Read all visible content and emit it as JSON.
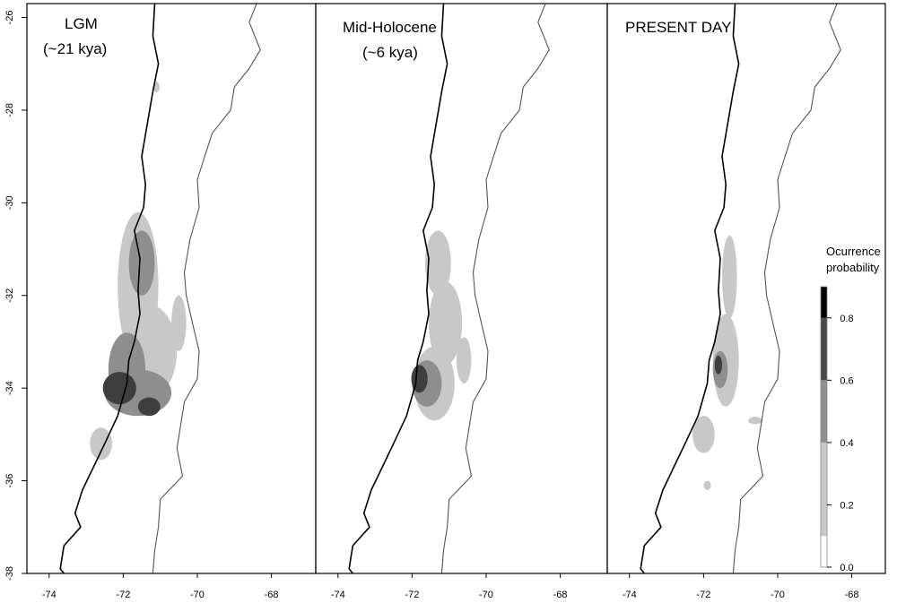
{
  "panels": [
    {
      "id": "lgm",
      "title_lines": [
        "LGM",
        "(~21 kya)"
      ],
      "blobs": [
        {
          "cx": -71.6,
          "cy": -31.8,
          "rx": 0.55,
          "ry": 1.6,
          "level": 0.2
        },
        {
          "cx": -71.5,
          "cy": -31.3,
          "rx": 0.35,
          "ry": 0.7,
          "level": 0.4
        },
        {
          "cx": -71.3,
          "cy": -33.2,
          "rx": 0.75,
          "ry": 1.0,
          "level": 0.2
        },
        {
          "cx": -71.9,
          "cy": -33.6,
          "rx": 0.5,
          "ry": 0.8,
          "level": 0.4
        },
        {
          "cx": -71.6,
          "cy": -34.1,
          "rx": 0.9,
          "ry": 0.5,
          "level": 0.4
        },
        {
          "cx": -72.1,
          "cy": -34.0,
          "rx": 0.45,
          "ry": 0.35,
          "level": 0.6
        },
        {
          "cx": -71.3,
          "cy": -34.4,
          "rx": 0.3,
          "ry": 0.2,
          "level": 0.6
        },
        {
          "cx": -72.6,
          "cy": -35.2,
          "rx": 0.3,
          "ry": 0.35,
          "level": 0.2
        },
        {
          "cx": -71.1,
          "cy": -27.5,
          "rx": 0.08,
          "ry": 0.12,
          "level": 0.2
        },
        {
          "cx": -70.5,
          "cy": -32.6,
          "rx": 0.2,
          "ry": 0.6,
          "level": 0.2
        }
      ]
    },
    {
      "id": "mid-holocene",
      "title_lines": [
        "Mid-Holocene",
        "(~6 kya)"
      ],
      "blobs": [
        {
          "cx": -71.3,
          "cy": -31.3,
          "rx": 0.35,
          "ry": 0.7,
          "level": 0.2
        },
        {
          "cx": -71.1,
          "cy": -32.6,
          "rx": 0.45,
          "ry": 0.9,
          "level": 0.2
        },
        {
          "cx": -71.4,
          "cy": -33.9,
          "rx": 0.55,
          "ry": 0.8,
          "level": 0.2
        },
        {
          "cx": -71.6,
          "cy": -33.9,
          "rx": 0.4,
          "ry": 0.5,
          "level": 0.4
        },
        {
          "cx": -71.8,
          "cy": -33.8,
          "rx": 0.22,
          "ry": 0.3,
          "level": 0.6
        },
        {
          "cx": -70.6,
          "cy": -33.4,
          "rx": 0.2,
          "ry": 0.5,
          "level": 0.2
        }
      ]
    },
    {
      "id": "present-day",
      "title_lines": [
        "PRESENT  DAY"
      ],
      "blobs": [
        {
          "cx": -71.3,
          "cy": -31.6,
          "rx": 0.2,
          "ry": 0.9,
          "level": 0.2
        },
        {
          "cx": -71.4,
          "cy": -33.4,
          "rx": 0.35,
          "ry": 1.0,
          "level": 0.2
        },
        {
          "cx": -71.55,
          "cy": -33.6,
          "rx": 0.2,
          "ry": 0.4,
          "level": 0.4
        },
        {
          "cx": -71.6,
          "cy": -33.5,
          "rx": 0.1,
          "ry": 0.2,
          "level": 0.6
        },
        {
          "cx": -72.0,
          "cy": -35.0,
          "rx": 0.3,
          "ry": 0.4,
          "level": 0.2
        },
        {
          "cx": -71.9,
          "cy": -36.1,
          "rx": 0.1,
          "ry": 0.1,
          "level": 0.2
        },
        {
          "cx": -70.6,
          "cy": -34.7,
          "rx": 0.2,
          "ry": 0.08,
          "level": 0.2
        }
      ]
    }
  ],
  "x_ticks": [
    "-74",
    "-72",
    "-70",
    "-68"
  ],
  "x_tick_values": [
    -74,
    -72,
    -70,
    -68
  ],
  "y_ticks": [
    "-26",
    "-28",
    "-30",
    "-32",
    "-34",
    "-36",
    "-38"
  ],
  "y_tick_values": [
    -26,
    -28,
    -30,
    -32,
    -34,
    -36,
    -38
  ],
  "extent": {
    "lon_min": -74.6,
    "lon_max": -67.3,
    "lat_max": -25.7,
    "lat_min": -38.0
  },
  "coast_west": [
    [
      -71.15,
      -25.7
    ],
    [
      -71.2,
      -26.4
    ],
    [
      -71.05,
      -27.0
    ],
    [
      -71.2,
      -27.6
    ],
    [
      -71.35,
      -28.3
    ],
    [
      -71.5,
      -29.0
    ],
    [
      -71.4,
      -29.6
    ],
    [
      -71.45,
      -30.1
    ],
    [
      -71.7,
      -30.6
    ],
    [
      -71.55,
      -31.2
    ],
    [
      -71.6,
      -31.9
    ],
    [
      -71.55,
      -32.4
    ],
    [
      -71.7,
      -33.0
    ],
    [
      -71.85,
      -33.4
    ],
    [
      -71.9,
      -33.9
    ],
    [
      -72.15,
      -34.6
    ],
    [
      -72.5,
      -35.2
    ],
    [
      -72.8,
      -35.7
    ],
    [
      -73.1,
      -36.2
    ],
    [
      -73.3,
      -36.7
    ],
    [
      -73.15,
      -37.0
    ],
    [
      -73.6,
      -37.4
    ],
    [
      -73.7,
      -37.9
    ],
    [
      -73.6,
      -38.0
    ]
  ],
  "border_east": [
    [
      -68.4,
      -25.7
    ],
    [
      -68.6,
      -26.1
    ],
    [
      -68.3,
      -26.7
    ],
    [
      -68.6,
      -27.1
    ],
    [
      -69.0,
      -27.5
    ],
    [
      -69.1,
      -28.0
    ],
    [
      -69.6,
      -28.5
    ],
    [
      -69.8,
      -29.0
    ],
    [
      -70.0,
      -29.5
    ],
    [
      -69.95,
      -30.1
    ],
    [
      -70.2,
      -30.8
    ],
    [
      -70.35,
      -31.5
    ],
    [
      -70.3,
      -32.0
    ],
    [
      -70.1,
      -32.7
    ],
    [
      -69.95,
      -33.2
    ],
    [
      -70.0,
      -33.8
    ],
    [
      -70.35,
      -34.3
    ],
    [
      -70.45,
      -34.8
    ],
    [
      -70.55,
      -35.3
    ],
    [
      -70.4,
      -35.9
    ],
    [
      -71.0,
      -36.4
    ],
    [
      -71.05,
      -37.0
    ],
    [
      -71.15,
      -37.5
    ],
    [
      -71.2,
      -38.0
    ]
  ],
  "legend": {
    "title_lines": [
      "Ocurrence",
      "probability"
    ],
    "tick_labels": [
      "0.8",
      "0.6",
      "0.4",
      "0.2",
      "0.0"
    ],
    "tick_values": [
      0.8,
      0.6,
      0.4,
      0.2,
      0.0
    ],
    "max_value": 0.9,
    "bands": [
      {
        "from": 0.0,
        "to": 0.1,
        "color": "#ffffff"
      },
      {
        "from": 0.1,
        "to": 0.4,
        "color": "#c8c8c8"
      },
      {
        "from": 0.4,
        "to": 0.6,
        "color": "#8e8e8e"
      },
      {
        "from": 0.6,
        "to": 0.8,
        "color": "#4a4a4a"
      },
      {
        "from": 0.8,
        "to": 0.9,
        "color": "#000000"
      }
    ]
  },
  "level_colors": {
    "0.2": "#c8c8c8",
    "0.4": "#8e8e8e",
    "0.6": "#3e3e3e"
  }
}
